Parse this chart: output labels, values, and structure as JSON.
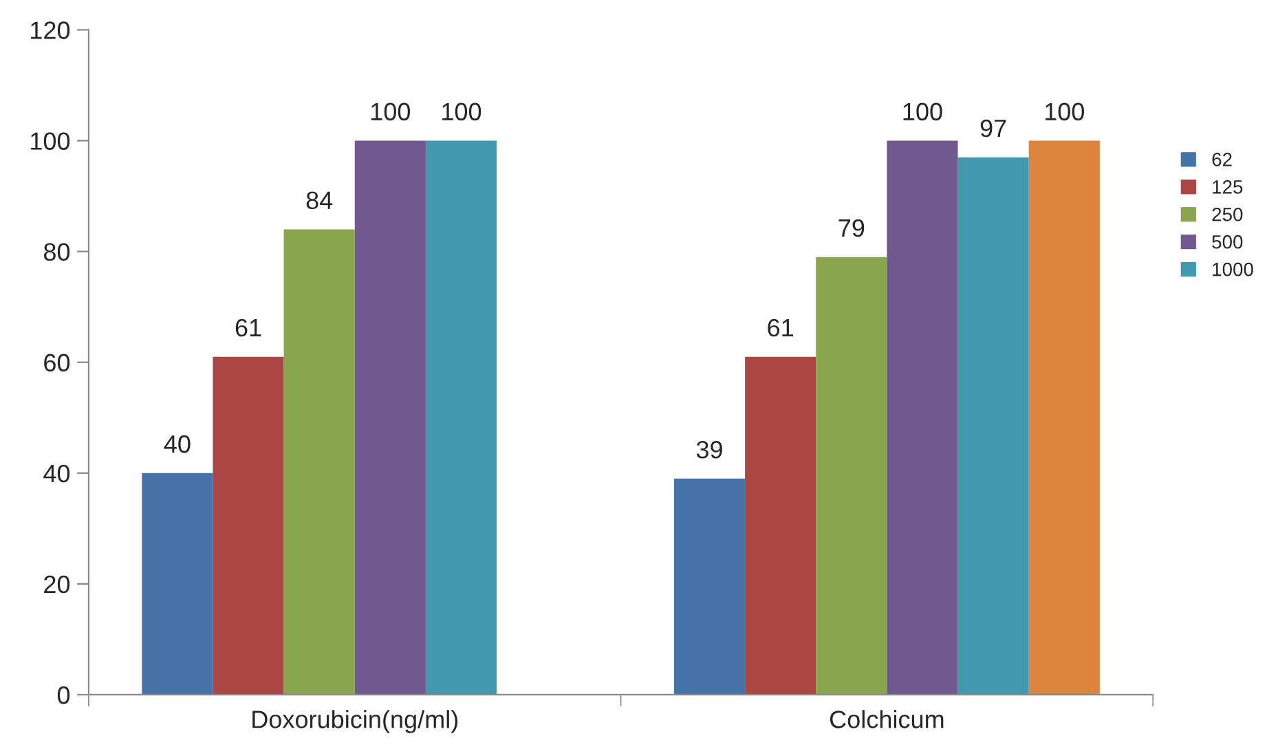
{
  "chart_data": {
    "type": "bar",
    "categories": [
      "Doxorubicin(ng/ml)",
      "Colchicum"
    ],
    "series": [
      {
        "name": "62",
        "color": "#4572a7",
        "values": [
          40,
          39
        ]
      },
      {
        "name": "125",
        "color": "#aa4643",
        "values": [
          61,
          61
        ]
      },
      {
        "name": "250",
        "color": "#89a54e",
        "values": [
          84,
          79
        ]
      },
      {
        "name": "500",
        "color": "#71588f",
        "values": [
          100,
          100
        ]
      },
      {
        "name": "1000",
        "color": "#4198af",
        "values": [
          100,
          97
        ]
      },
      {
        "color": "#db843d",
        "values": [
          null,
          100
        ]
      }
    ],
    "ylim": [
      0,
      120
    ],
    "yticks": [
      0,
      20,
      40,
      60,
      80,
      100,
      120
    ],
    "data_labels": true,
    "grid": false,
    "legend": "right"
  }
}
